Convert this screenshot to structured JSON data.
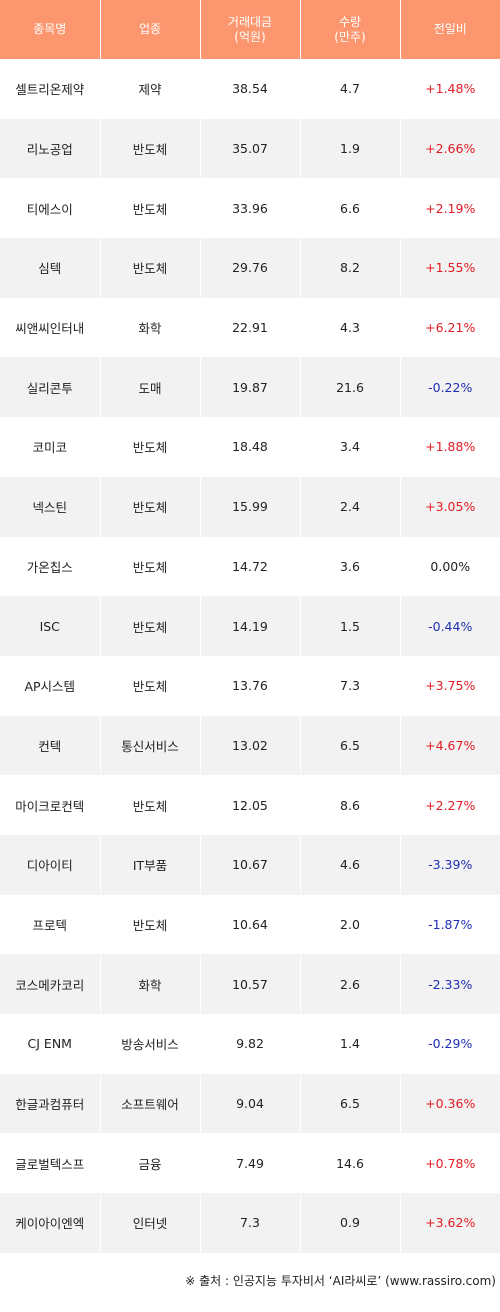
{
  "header": {
    "name": "종목명",
    "sector": "업종",
    "amount_line1": "거래대금",
    "amount_line2": "(억원)",
    "volume_line1": "수량",
    "volume_line2": "(만주)",
    "change": "전일비"
  },
  "rows": [
    {
      "name": "셀트리온제약",
      "sector": "제약",
      "amount": "38.54",
      "volume": "4.7",
      "change": "+1.48%",
      "dir": "up"
    },
    {
      "name": "리노공업",
      "sector": "반도체",
      "amount": "35.07",
      "volume": "1.9",
      "change": "+2.66%",
      "dir": "up"
    },
    {
      "name": "티에스이",
      "sector": "반도체",
      "amount": "33.96",
      "volume": "6.6",
      "change": "+2.19%",
      "dir": "up"
    },
    {
      "name": "심텍",
      "sector": "반도체",
      "amount": "29.76",
      "volume": "8.2",
      "change": "+1.55%",
      "dir": "up"
    },
    {
      "name": "씨앤씨인터내",
      "sector": "화학",
      "amount": "22.91",
      "volume": "4.3",
      "change": "+6.21%",
      "dir": "up"
    },
    {
      "name": "실리콘투",
      "sector": "도매",
      "amount": "19.87",
      "volume": "21.6",
      "change": "-0.22%",
      "dir": "down"
    },
    {
      "name": "코미코",
      "sector": "반도체",
      "amount": "18.48",
      "volume": "3.4",
      "change": "+1.88%",
      "dir": "up"
    },
    {
      "name": "넥스틴",
      "sector": "반도체",
      "amount": "15.99",
      "volume": "2.4",
      "change": "+3.05%",
      "dir": "up"
    },
    {
      "name": "가온칩스",
      "sector": "반도체",
      "amount": "14.72",
      "volume": "3.6",
      "change": "0.00%",
      "dir": "flat"
    },
    {
      "name": "ISC",
      "sector": "반도체",
      "amount": "14.19",
      "volume": "1.5",
      "change": "-0.44%",
      "dir": "down"
    },
    {
      "name": "AP시스템",
      "sector": "반도체",
      "amount": "13.76",
      "volume": "7.3",
      "change": "+3.75%",
      "dir": "up"
    },
    {
      "name": "컨텍",
      "sector": "통신서비스",
      "amount": "13.02",
      "volume": "6.5",
      "change": "+4.67%",
      "dir": "up"
    },
    {
      "name": "마이크로컨텍",
      "sector": "반도체",
      "amount": "12.05",
      "volume": "8.6",
      "change": "+2.27%",
      "dir": "up"
    },
    {
      "name": "디아이티",
      "sector": "IT부품",
      "amount": "10.67",
      "volume": "4.6",
      "change": "-3.39%",
      "dir": "down"
    },
    {
      "name": "프로텍",
      "sector": "반도체",
      "amount": "10.64",
      "volume": "2.0",
      "change": "-1.87%",
      "dir": "down"
    },
    {
      "name": "코스메카코리",
      "sector": "화학",
      "amount": "10.57",
      "volume": "2.6",
      "change": "-2.33%",
      "dir": "down"
    },
    {
      "name": "CJ ENM",
      "sector": "방송서비스",
      "amount": "9.82",
      "volume": "1.4",
      "change": "-0.29%",
      "dir": "down"
    },
    {
      "name": "한글과컴퓨터",
      "sector": "소프트웨어",
      "amount": "9.04",
      "volume": "6.5",
      "change": "+0.36%",
      "dir": "up"
    },
    {
      "name": "글로벌텍스프",
      "sector": "금융",
      "amount": "7.49",
      "volume": "14.6",
      "change": "+0.78%",
      "dir": "up"
    },
    {
      "name": "케이아이엔엑",
      "sector": "인터넷",
      "amount": "7.3",
      "volume": "0.9",
      "change": "+3.62%",
      "dir": "up"
    }
  ],
  "source": "※ 출처 : 인공지능 투자비서 ‘AI라씨로’ (www.rassiro.com)",
  "colors": {
    "header_bg": "#fb966e",
    "up": "#e31b23",
    "down": "#1f2fb3",
    "row_alt": "#f2f2f2"
  }
}
